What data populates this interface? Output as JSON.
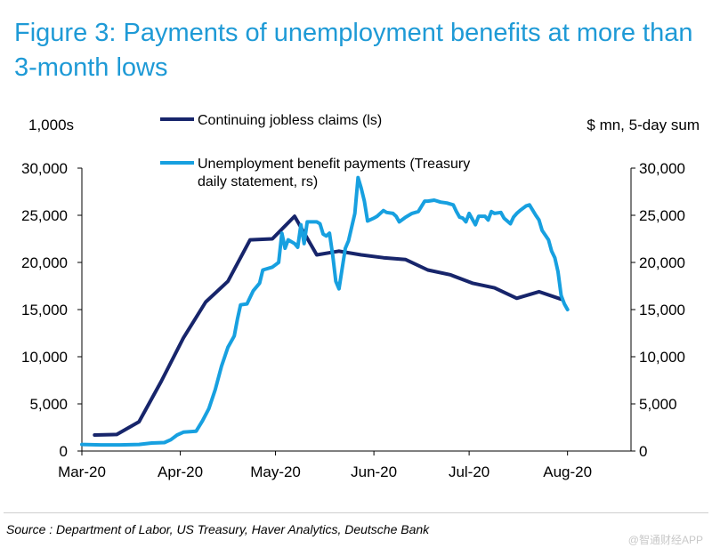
{
  "title": "Figure 3: Payments of unemployment benefits at more than 3-month lows",
  "source": "Source : Department of Labor, US Treasury, Haver Analytics, Deutsche Bank",
  "watermark": "@智通财经APP",
  "chart_data": {
    "type": "line",
    "left_axis_unit": "1,000s",
    "right_axis_unit": "$ mn, 5-day sum",
    "ylim_left": [
      0,
      30000
    ],
    "ylim_right": [
      0,
      30000
    ],
    "xlim_day": [
      0,
      173
    ],
    "y_ticks": [
      0,
      5000,
      10000,
      15000,
      20000,
      25000,
      30000
    ],
    "y_tick_labels": [
      "0",
      "5,000",
      "10,000",
      "15,000",
      "20,000",
      "25,000",
      "30,000"
    ],
    "x_ticks": [
      {
        "label": "Mar-20",
        "day": 0
      },
      {
        "label": "Apr-20",
        "day": 31
      },
      {
        "label": "May-20",
        "day": 61
      },
      {
        "label": "Jun-20",
        "day": 92
      },
      {
        "label": "Jul-20",
        "day": 122
      },
      {
        "label": "Aug-20",
        "day": 153
      }
    ],
    "series": [
      {
        "name": "Continuing jobless claims (ls)",
        "axis": "left",
        "color": "#17256b",
        "points": [
          [
            4,
            1700
          ],
          [
            11,
            1750
          ],
          [
            18,
            3100
          ],
          [
            25,
            7400
          ],
          [
            32,
            12000
          ],
          [
            39,
            15800
          ],
          [
            46,
            18000
          ],
          [
            53,
            22400
          ],
          [
            60,
            22500
          ],
          [
            67,
            24900
          ],
          [
            74,
            20800
          ],
          [
            81,
            21200
          ],
          [
            88,
            20800
          ],
          [
            95,
            20500
          ],
          [
            102,
            20300
          ],
          [
            109,
            19200
          ],
          [
            116,
            18700
          ],
          [
            123,
            17800
          ],
          [
            130,
            17300
          ],
          [
            137,
            16200
          ],
          [
            144,
            16900
          ],
          [
            151,
            16100
          ]
        ]
      },
      {
        "name": "Unemployment benefit payments (Treasury daily statement, rs)",
        "axis": "right",
        "color": "#17a0e0",
        "points": [
          [
            0,
            700
          ],
          [
            6,
            650
          ],
          [
            12,
            650
          ],
          [
            18,
            700
          ],
          [
            22,
            850
          ],
          [
            26,
            900
          ],
          [
            28,
            1200
          ],
          [
            30,
            1700
          ],
          [
            32,
            2000
          ],
          [
            36,
            2100
          ],
          [
            38,
            3200
          ],
          [
            40,
            4500
          ],
          [
            42,
            6500
          ],
          [
            44,
            9000
          ],
          [
            46,
            11000
          ],
          [
            48,
            12200
          ],
          [
            49,
            14000
          ],
          [
            50,
            15500
          ],
          [
            52,
            15600
          ],
          [
            54,
            17000
          ],
          [
            56,
            17800
          ],
          [
            57,
            19200
          ],
          [
            60,
            19500
          ],
          [
            62,
            20000
          ],
          [
            63,
            23100
          ],
          [
            64,
            21500
          ],
          [
            65,
            22400
          ],
          [
            67,
            22000
          ],
          [
            68,
            21600
          ],
          [
            69,
            24000
          ],
          [
            70,
            22000
          ],
          [
            71,
            24300
          ],
          [
            74,
            24300
          ],
          [
            75,
            24100
          ],
          [
            76,
            23000
          ],
          [
            77,
            22800
          ],
          [
            78,
            23100
          ],
          [
            79,
            20800
          ],
          [
            80,
            18000
          ],
          [
            81,
            17200
          ],
          [
            83,
            21500
          ],
          [
            84,
            22300
          ],
          [
            86,
            25200
          ],
          [
            87,
            29000
          ],
          [
            88,
            27900
          ],
          [
            89,
            26500
          ],
          [
            90,
            24400
          ],
          [
            92,
            24700
          ],
          [
            93,
            24900
          ],
          [
            95,
            25500
          ],
          [
            96,
            25300
          ],
          [
            98,
            25200
          ],
          [
            99,
            24900
          ],
          [
            100,
            24300
          ],
          [
            102,
            24800
          ],
          [
            104,
            25200
          ],
          [
            106,
            25400
          ],
          [
            108,
            26500
          ],
          [
            109,
            26500
          ],
          [
            111,
            26600
          ],
          [
            113,
            26400
          ],
          [
            115,
            26300
          ],
          [
            117,
            26100
          ],
          [
            118,
            25400
          ],
          [
            119,
            24800
          ],
          [
            120,
            24700
          ],
          [
            121,
            24300
          ],
          [
            122,
            25200
          ],
          [
            124,
            24000
          ],
          [
            125,
            24900
          ],
          [
            127,
            24900
          ],
          [
            128,
            24500
          ],
          [
            129,
            25400
          ],
          [
            130,
            25200
          ],
          [
            132,
            25300
          ],
          [
            133,
            24700
          ],
          [
            135,
            24100
          ],
          [
            136,
            24800
          ],
          [
            137,
            25200
          ],
          [
            138,
            25500
          ],
          [
            140,
            26000
          ],
          [
            141,
            26100
          ],
          [
            143,
            25000
          ],
          [
            144,
            24500
          ],
          [
            145,
            23400
          ],
          [
            147,
            22400
          ],
          [
            148,
            21200
          ],
          [
            149,
            20500
          ],
          [
            150,
            19000
          ],
          [
            151,
            16500
          ],
          [
            152,
            15600
          ],
          [
            153,
            15000
          ]
        ]
      }
    ]
  }
}
